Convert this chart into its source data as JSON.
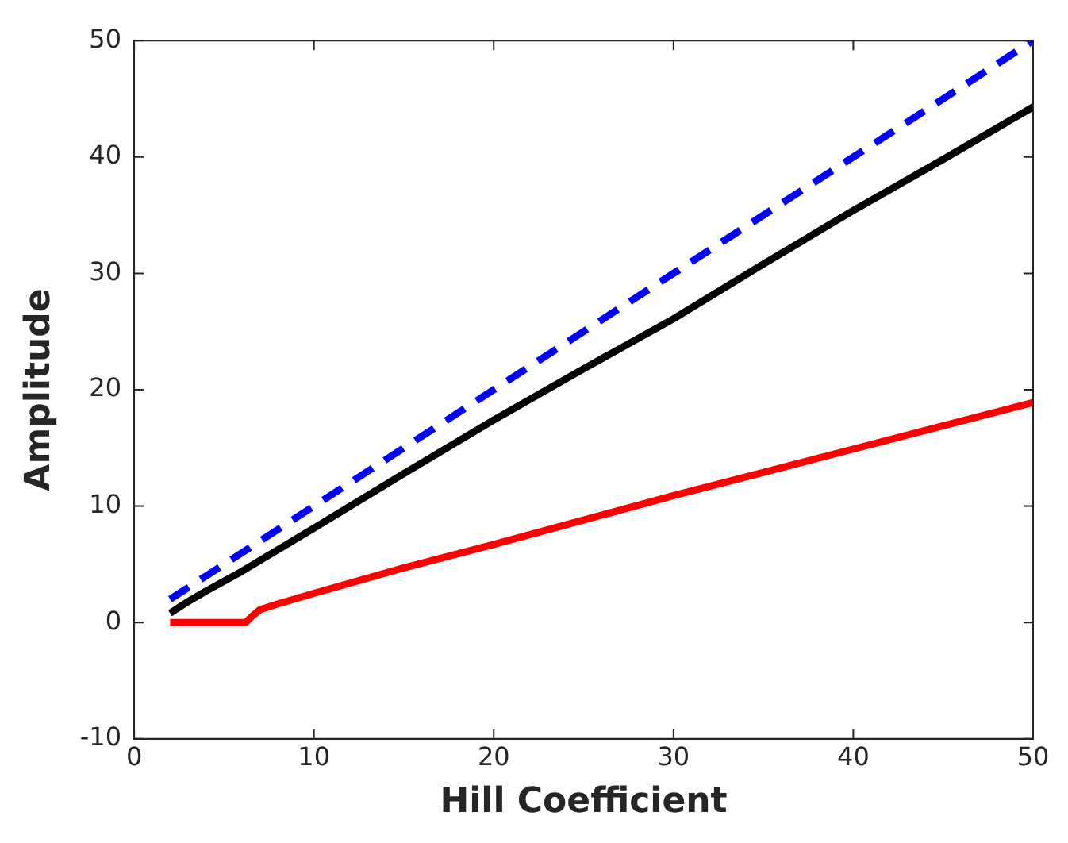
{
  "chart_data": {
    "type": "line",
    "xlabel": "Hill Coefficient",
    "ylabel": "Amplitude",
    "xlim": [
      0,
      50
    ],
    "xticks": [
      0,
      10,
      20,
      30,
      40,
      50
    ],
    "ylim": [
      -10,
      50
    ],
    "yticks": [
      -10,
      0,
      10,
      20,
      30,
      40,
      50
    ],
    "grid": false,
    "legend": false,
    "marker": "none",
    "series": [
      {
        "color": "#0000ff",
        "line_style": "dashed",
        "x": [
          2,
          50
        ],
        "values": [
          2,
          50
        ]
      },
      {
        "color": "#000000",
        "line_style": "solid",
        "x": [
          2,
          3,
          4,
          6,
          10,
          15,
          20,
          25,
          30,
          35,
          40,
          45,
          50
        ],
        "values": [
          0.8,
          1.8,
          2.7,
          4.4,
          8.1,
          12.8,
          17.4,
          21.8,
          26.1,
          30.8,
          35.4,
          39.8,
          44.3
        ]
      },
      {
        "color": "#ff0000",
        "line_style": "solid",
        "x": [
          2,
          6.2,
          6.6,
          7,
          8,
          10,
          15,
          20,
          25,
          30,
          35,
          40,
          45,
          50
        ],
        "values": [
          0,
          0,
          0.6,
          1.1,
          1.6,
          2.5,
          4.7,
          6.7,
          8.8,
          10.9,
          12.9,
          14.9,
          16.9,
          18.9
        ]
      }
    ]
  }
}
